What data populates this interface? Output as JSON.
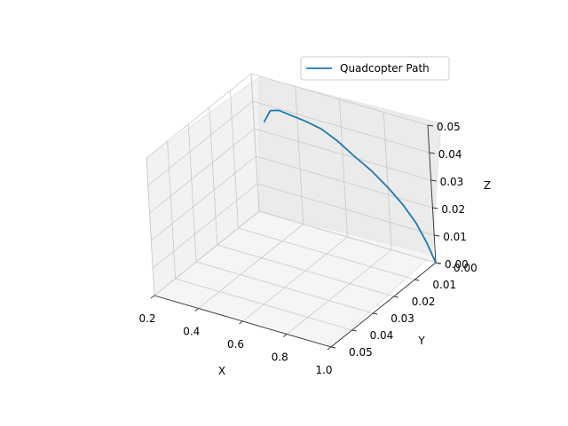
{
  "chart_data": {
    "type": "line",
    "projection": "3d",
    "title": "",
    "xlabel": "X",
    "ylabel": "Y",
    "zlabel": "Z",
    "xlim": [
      0.2,
      1.0
    ],
    "ylim": [
      0.0,
      0.05
    ],
    "zlim": [
      0.0,
      0.05
    ],
    "x_ticks": [
      "0.2",
      "0.4",
      "0.6",
      "0.8",
      "1.0"
    ],
    "y_ticks": [
      "0.00",
      "0.01",
      "0.02",
      "0.03",
      "0.04",
      "0.05"
    ],
    "z_ticks": [
      "0.00",
      "0.01",
      "0.02",
      "0.03",
      "0.04",
      "0.05"
    ],
    "grid": true,
    "legend": {
      "position": "upper right",
      "entries": [
        "Quadcopter Path"
      ]
    },
    "series": [
      {
        "name": "Quadcopter Path",
        "color": "#1f77b4",
        "points": [
          [
            1.0,
            0.0,
            0.0
          ],
          [
            0.985,
            0.002,
            0.008
          ],
          [
            0.96,
            0.004,
            0.016
          ],
          [
            0.925,
            0.006,
            0.023
          ],
          [
            0.88,
            0.008,
            0.0295
          ],
          [
            0.83,
            0.01,
            0.0355
          ],
          [
            0.77,
            0.012,
            0.041
          ],
          [
            0.71,
            0.013,
            0.0455
          ],
          [
            0.65,
            0.014,
            0.049
          ],
          [
            0.59,
            0.015,
            0.051
          ],
          [
            0.53,
            0.016,
            0.0525
          ],
          [
            0.48,
            0.016,
            0.053
          ],
          [
            0.44,
            0.016,
            0.052
          ],
          [
            0.43,
            0.018,
            0.049
          ]
        ]
      }
    ]
  }
}
